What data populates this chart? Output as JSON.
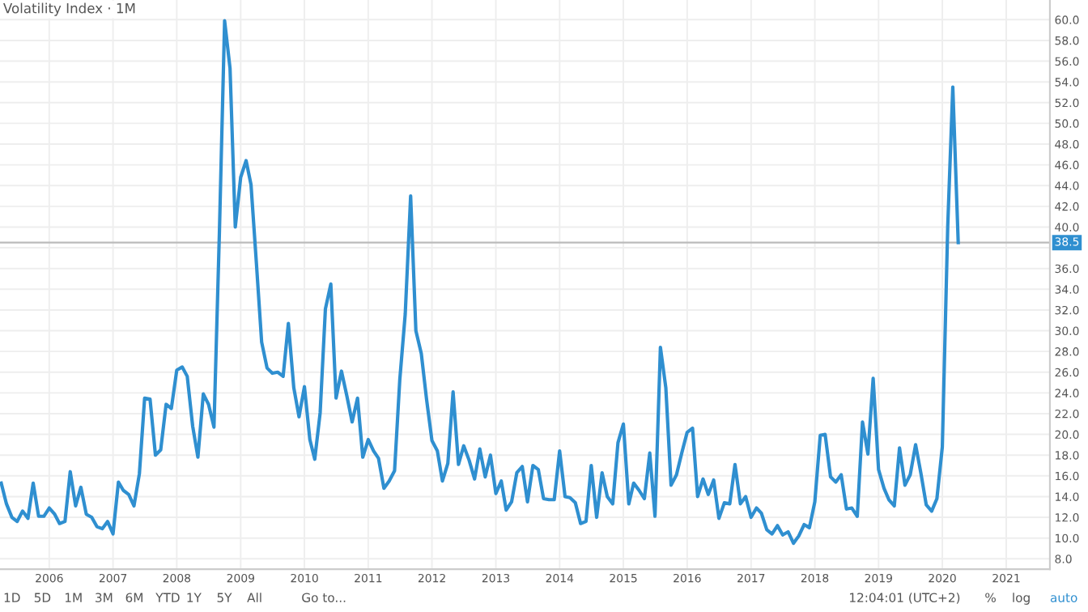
{
  "chart_data": {
    "type": "line",
    "title": "Volatility Index · 1M",
    "annotations": [
      "1D",
      "5D",
      "1M",
      "3M",
      "6M",
      "YTD",
      "1Y",
      "5Y",
      "All",
      "Go to...",
      "12:04:01 (UTC+2)",
      "%",
      "log",
      "auto"
    ],
    "x": [
      "2005-04",
      "2005-05",
      "2005-06",
      "2005-07",
      "2005-08",
      "2005-09",
      "2005-10",
      "2005-11",
      "2005-12",
      "2006-01",
      "2006-02",
      "2006-03",
      "2006-04",
      "2006-05",
      "2006-06",
      "2006-07",
      "2006-08",
      "2006-09",
      "2006-10",
      "2006-11",
      "2006-12",
      "2007-01",
      "2007-02",
      "2007-03",
      "2007-04",
      "2007-05",
      "2007-06",
      "2007-07",
      "2007-08",
      "2007-09",
      "2007-10",
      "2007-11",
      "2007-12",
      "2008-01",
      "2008-02",
      "2008-03",
      "2008-04",
      "2008-05",
      "2008-06",
      "2008-07",
      "2008-08",
      "2008-09",
      "2008-10",
      "2008-11",
      "2008-12",
      "2009-01",
      "2009-02",
      "2009-03",
      "2009-04",
      "2009-05",
      "2009-06",
      "2009-07",
      "2009-08",
      "2009-09",
      "2009-10",
      "2009-11",
      "2009-12",
      "2010-01",
      "2010-02",
      "2010-03",
      "2010-04",
      "2010-05",
      "2010-06",
      "2010-07",
      "2010-08",
      "2010-09",
      "2010-10",
      "2010-11",
      "2010-12",
      "2011-01",
      "2011-02",
      "2011-03",
      "2011-04",
      "2011-05",
      "2011-06",
      "2011-07",
      "2011-08",
      "2011-09",
      "2011-10",
      "2011-11",
      "2011-12",
      "2012-01",
      "2012-02",
      "2012-03",
      "2012-04",
      "2012-05",
      "2012-06",
      "2012-07",
      "2012-08",
      "2012-09",
      "2012-10",
      "2012-11",
      "2012-12",
      "2013-01",
      "2013-02",
      "2013-03",
      "2013-04",
      "2013-05",
      "2013-06",
      "2013-07",
      "2013-08",
      "2013-09",
      "2013-10",
      "2013-11",
      "2013-12",
      "2014-01",
      "2014-02",
      "2014-03",
      "2014-04",
      "2014-05",
      "2014-06",
      "2014-07",
      "2014-08",
      "2014-09",
      "2014-10",
      "2014-11",
      "2014-12",
      "2015-01",
      "2015-02",
      "2015-03",
      "2015-04",
      "2015-05",
      "2015-06",
      "2015-07",
      "2015-08",
      "2015-09",
      "2015-10",
      "2015-11",
      "2015-12",
      "2016-01",
      "2016-02",
      "2016-03",
      "2016-04",
      "2016-05",
      "2016-06",
      "2016-07",
      "2016-08",
      "2016-09",
      "2016-10",
      "2016-11",
      "2016-12",
      "2017-01",
      "2017-02",
      "2017-03",
      "2017-04",
      "2017-05",
      "2017-06",
      "2017-07",
      "2017-08",
      "2017-09",
      "2017-10",
      "2017-11",
      "2017-12",
      "2018-01",
      "2018-02",
      "2018-03",
      "2018-04",
      "2018-05",
      "2018-06",
      "2018-07",
      "2018-08",
      "2018-09",
      "2018-10",
      "2018-11",
      "2018-12",
      "2019-01",
      "2019-02",
      "2019-03",
      "2019-04",
      "2019-05",
      "2019-06",
      "2019-07",
      "2019-08",
      "2019-09",
      "2019-10",
      "2019-11",
      "2019-12",
      "2020-01",
      "2020-02",
      "2020-03",
      "2020-04"
    ],
    "series": [
      {
        "color": "#2f8fd0",
        "values": [
          15.3,
          13.3,
          12.0,
          11.6,
          12.6,
          11.9,
          15.3,
          12.1,
          12.1,
          12.9,
          12.3,
          11.4,
          11.6,
          16.4,
          13.1,
          14.9,
          12.3,
          12.0,
          11.1,
          10.9,
          11.6,
          10.4,
          15.4,
          14.6,
          14.2,
          13.1,
          16.2,
          23.5,
          23.4,
          18.0,
          18.5,
          22.9,
          22.5,
          26.2,
          26.5,
          25.6,
          20.8,
          17.8,
          23.9,
          22.9,
          20.7,
          39.4,
          59.9,
          55.3,
          40.0,
          44.8,
          46.4,
          44.1,
          36.5,
          28.9,
          26.4,
          25.9,
          26.0,
          25.6,
          30.7,
          24.5,
          21.7,
          24.6,
          19.5,
          17.6,
          22.1,
          32.1,
          34.5,
          23.5,
          26.1,
          23.7,
          21.2,
          23.5,
          17.8,
          19.5,
          18.4,
          17.7,
          14.8,
          15.5,
          16.5,
          25.3,
          31.6,
          43.0,
          30.0,
          27.8,
          23.4,
          19.4,
          18.4,
          15.5,
          17.2,
          24.1,
          17.1,
          18.9,
          17.5,
          15.7,
          18.6,
          15.9,
          18.0,
          14.3,
          15.5,
          12.7,
          13.5,
          16.3,
          16.9,
          13.5,
          17.0,
          16.6,
          13.8,
          13.7,
          13.7,
          18.4,
          14.0,
          13.9,
          13.4,
          11.4,
          11.6,
          17.0,
          12.0,
          16.3,
          14.0,
          13.3,
          19.2,
          21.0,
          13.3,
          15.3,
          14.6,
          13.8,
          18.2,
          12.1,
          28.4,
          24.5,
          15.1,
          16.1,
          18.2,
          20.2,
          20.6,
          14.0,
          15.7,
          14.2,
          15.6,
          11.9,
          13.4,
          13.3,
          17.1,
          13.3,
          14.0,
          12.0,
          12.9,
          12.4,
          10.8,
          10.4,
          11.2,
          10.3,
          10.6,
          9.5,
          10.2,
          11.3,
          11.0,
          13.5,
          19.9,
          20.0,
          15.9,
          15.4,
          16.1,
          12.8,
          12.9,
          12.1,
          21.2,
          18.1,
          25.4,
          16.6,
          14.8,
          13.7,
          13.1,
          18.7,
          15.1,
          16.1,
          19.0,
          16.2,
          13.2,
          12.6,
          13.8,
          18.8,
          40.1,
          53.5,
          38.5
        ]
      }
    ],
    "xlim": [
      "2005-03-25",
      "2021-09-08"
    ],
    "xticks": [
      "2006",
      "2007",
      "2008",
      "2009",
      "2010",
      "2011",
      "2012",
      "2013",
      "2014",
      "2015",
      "2016",
      "2017",
      "2018",
      "2019",
      "2020",
      "2021"
    ],
    "ylim": [
      7.0,
      61.9
    ],
    "yticks": [
      {
        "value": 8,
        "label": "8.0"
      },
      {
        "value": 10,
        "label": "10.0"
      },
      {
        "value": 12,
        "label": "12.0"
      },
      {
        "value": 14,
        "label": "14.0"
      },
      {
        "value": 16,
        "label": "16.0"
      },
      {
        "value": 18,
        "label": "18.0"
      },
      {
        "value": 20,
        "label": "20.0"
      },
      {
        "value": 22,
        "label": "22.0"
      },
      {
        "value": 24,
        "label": "24.0"
      },
      {
        "value": 26,
        "label": "26.0"
      },
      {
        "value": 28,
        "label": "28.0"
      },
      {
        "value": 30,
        "label": "30.0"
      },
      {
        "value": 32,
        "label": "32.0"
      },
      {
        "value": 34,
        "label": "34.0"
      },
      {
        "value": 36,
        "label": "36.0"
      },
      {
        "value": 38,
        "label": null
      },
      {
        "value": 40,
        "label": "40.0"
      },
      {
        "value": 42,
        "label": "42.0"
      },
      {
        "value": 44,
        "label": "44.0"
      },
      {
        "value": 46,
        "label": "46.0"
      },
      {
        "value": 48,
        "label": "48.0"
      },
      {
        "value": 50,
        "label": "50.0"
      },
      {
        "value": 52,
        "label": "52.0"
      },
      {
        "value": 54,
        "label": "54.0"
      },
      {
        "value": 56,
        "label": "56.0"
      },
      {
        "value": 58,
        "label": "58.0"
      },
      {
        "value": 60,
        "label": "60.0"
      }
    ],
    "ref_lines": [
      {
        "axis": "y",
        "value": 38.5,
        "label": "38.5"
      }
    ],
    "grid": true,
    "marker": "none",
    "line_style": "solid"
  }
}
